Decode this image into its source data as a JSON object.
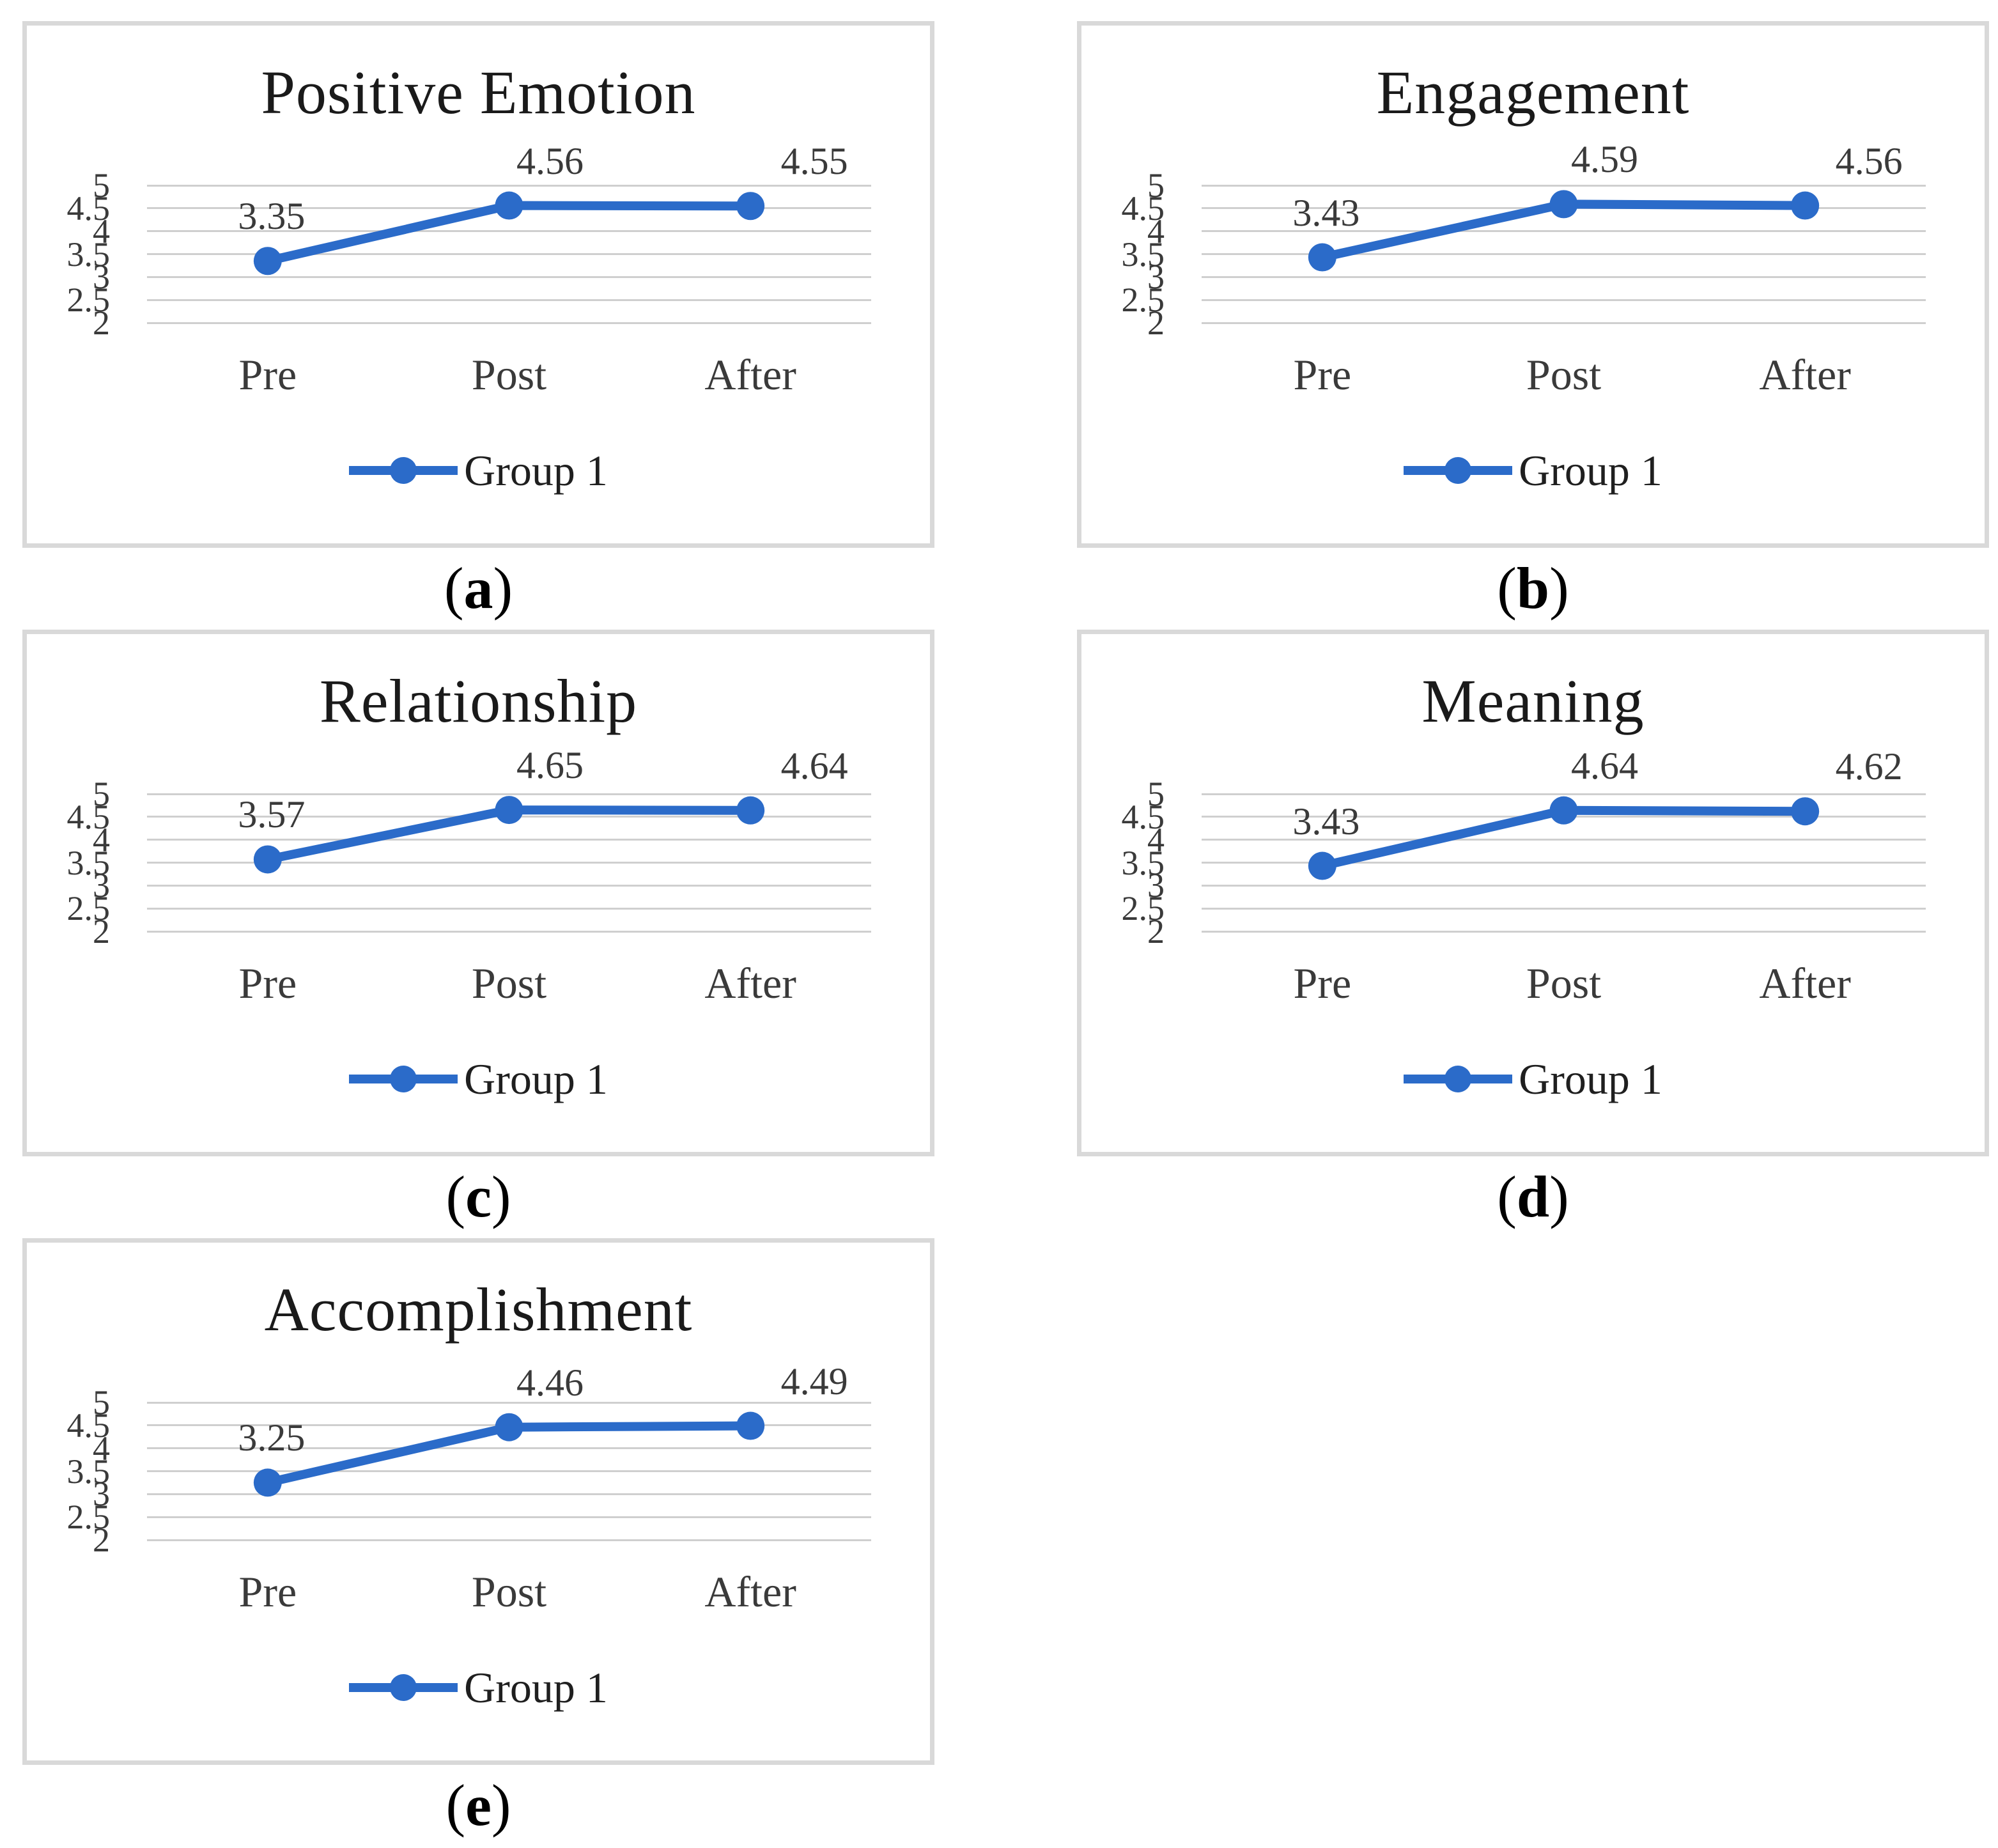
{
  "figure": {
    "accent_color": "#2b6bc9",
    "background_color": "#ffffff",
    "border_color": "#d9d9d9",
    "gridline_color": "#cfcfcf"
  },
  "chart_data": [
    {
      "type": "line",
      "title": "Positive Emotion",
      "caption_open": "(",
      "caption_letter": "a",
      "caption_close": ")",
      "categories": [
        "Pre",
        "Post",
        "After"
      ],
      "series": [
        {
          "name": "Group 1",
          "values": [
            3.35,
            4.56,
            4.55
          ]
        }
      ],
      "data_labels": [
        "3.35",
        "4.56",
        "4.55"
      ],
      "y_ticks": [
        "5",
        "4.5",
        "4",
        "3.5",
        "3",
        "2.5",
        "2"
      ],
      "ylim": [
        2,
        5
      ],
      "ytick_step": 0.5,
      "grid": true,
      "legend_position": "bottom"
    },
    {
      "type": "line",
      "title": "Engagement",
      "caption_open": "(",
      "caption_letter": "b",
      "caption_close": ")",
      "categories": [
        "Pre",
        "Post",
        "After"
      ],
      "series": [
        {
          "name": "Group 1",
          "values": [
            3.43,
            4.59,
            4.56
          ]
        }
      ],
      "data_labels": [
        "3.43",
        "4.59",
        "4.56"
      ],
      "y_ticks": [
        "5",
        "4.5",
        "4",
        "3.5",
        "3",
        "2.5",
        "2"
      ],
      "ylim": [
        2,
        5
      ],
      "ytick_step": 0.5,
      "grid": true,
      "legend_position": "bottom"
    },
    {
      "type": "line",
      "title": "Relationship",
      "caption_open": "(",
      "caption_letter": "c",
      "caption_close": ")",
      "categories": [
        "Pre",
        "Post",
        "After"
      ],
      "series": [
        {
          "name": "Group 1",
          "values": [
            3.57,
            4.65,
            4.64
          ]
        }
      ],
      "data_labels": [
        "3.57",
        "4.65",
        "4.64"
      ],
      "y_ticks": [
        "5",
        "4.5",
        "4",
        "3.5",
        "3",
        "2.5",
        "2"
      ],
      "ylim": [
        2,
        5
      ],
      "ytick_step": 0.5,
      "grid": true,
      "legend_position": "bottom"
    },
    {
      "type": "line",
      "title": "Meaning",
      "caption_open": "(",
      "caption_letter": "d",
      "caption_close": ")",
      "categories": [
        "Pre",
        "Post",
        "After"
      ],
      "series": [
        {
          "name": "Group 1",
          "values": [
            3.43,
            4.64,
            4.62
          ]
        }
      ],
      "data_labels": [
        "3.43",
        "4.64",
        "4.62"
      ],
      "y_ticks": [
        "5",
        "4.5",
        "4",
        "3.5",
        "3",
        "2.5",
        "2"
      ],
      "ylim": [
        2,
        5
      ],
      "ytick_step": 0.5,
      "grid": true,
      "legend_position": "bottom"
    },
    {
      "type": "line",
      "title": "Accomplishment",
      "caption_open": "(",
      "caption_letter": "e",
      "caption_close": ")",
      "categories": [
        "Pre",
        "Post",
        "After"
      ],
      "series": [
        {
          "name": "Group 1",
          "values": [
            3.25,
            4.46,
            4.49
          ]
        }
      ],
      "data_labels": [
        "3.25",
        "4.46",
        "4.49"
      ],
      "y_ticks": [
        "5",
        "4.5",
        "4",
        "3.5",
        "3",
        "2.5",
        "2"
      ],
      "ylim": [
        2,
        5
      ],
      "ytick_step": 0.5,
      "grid": true,
      "legend_position": "bottom"
    }
  ]
}
